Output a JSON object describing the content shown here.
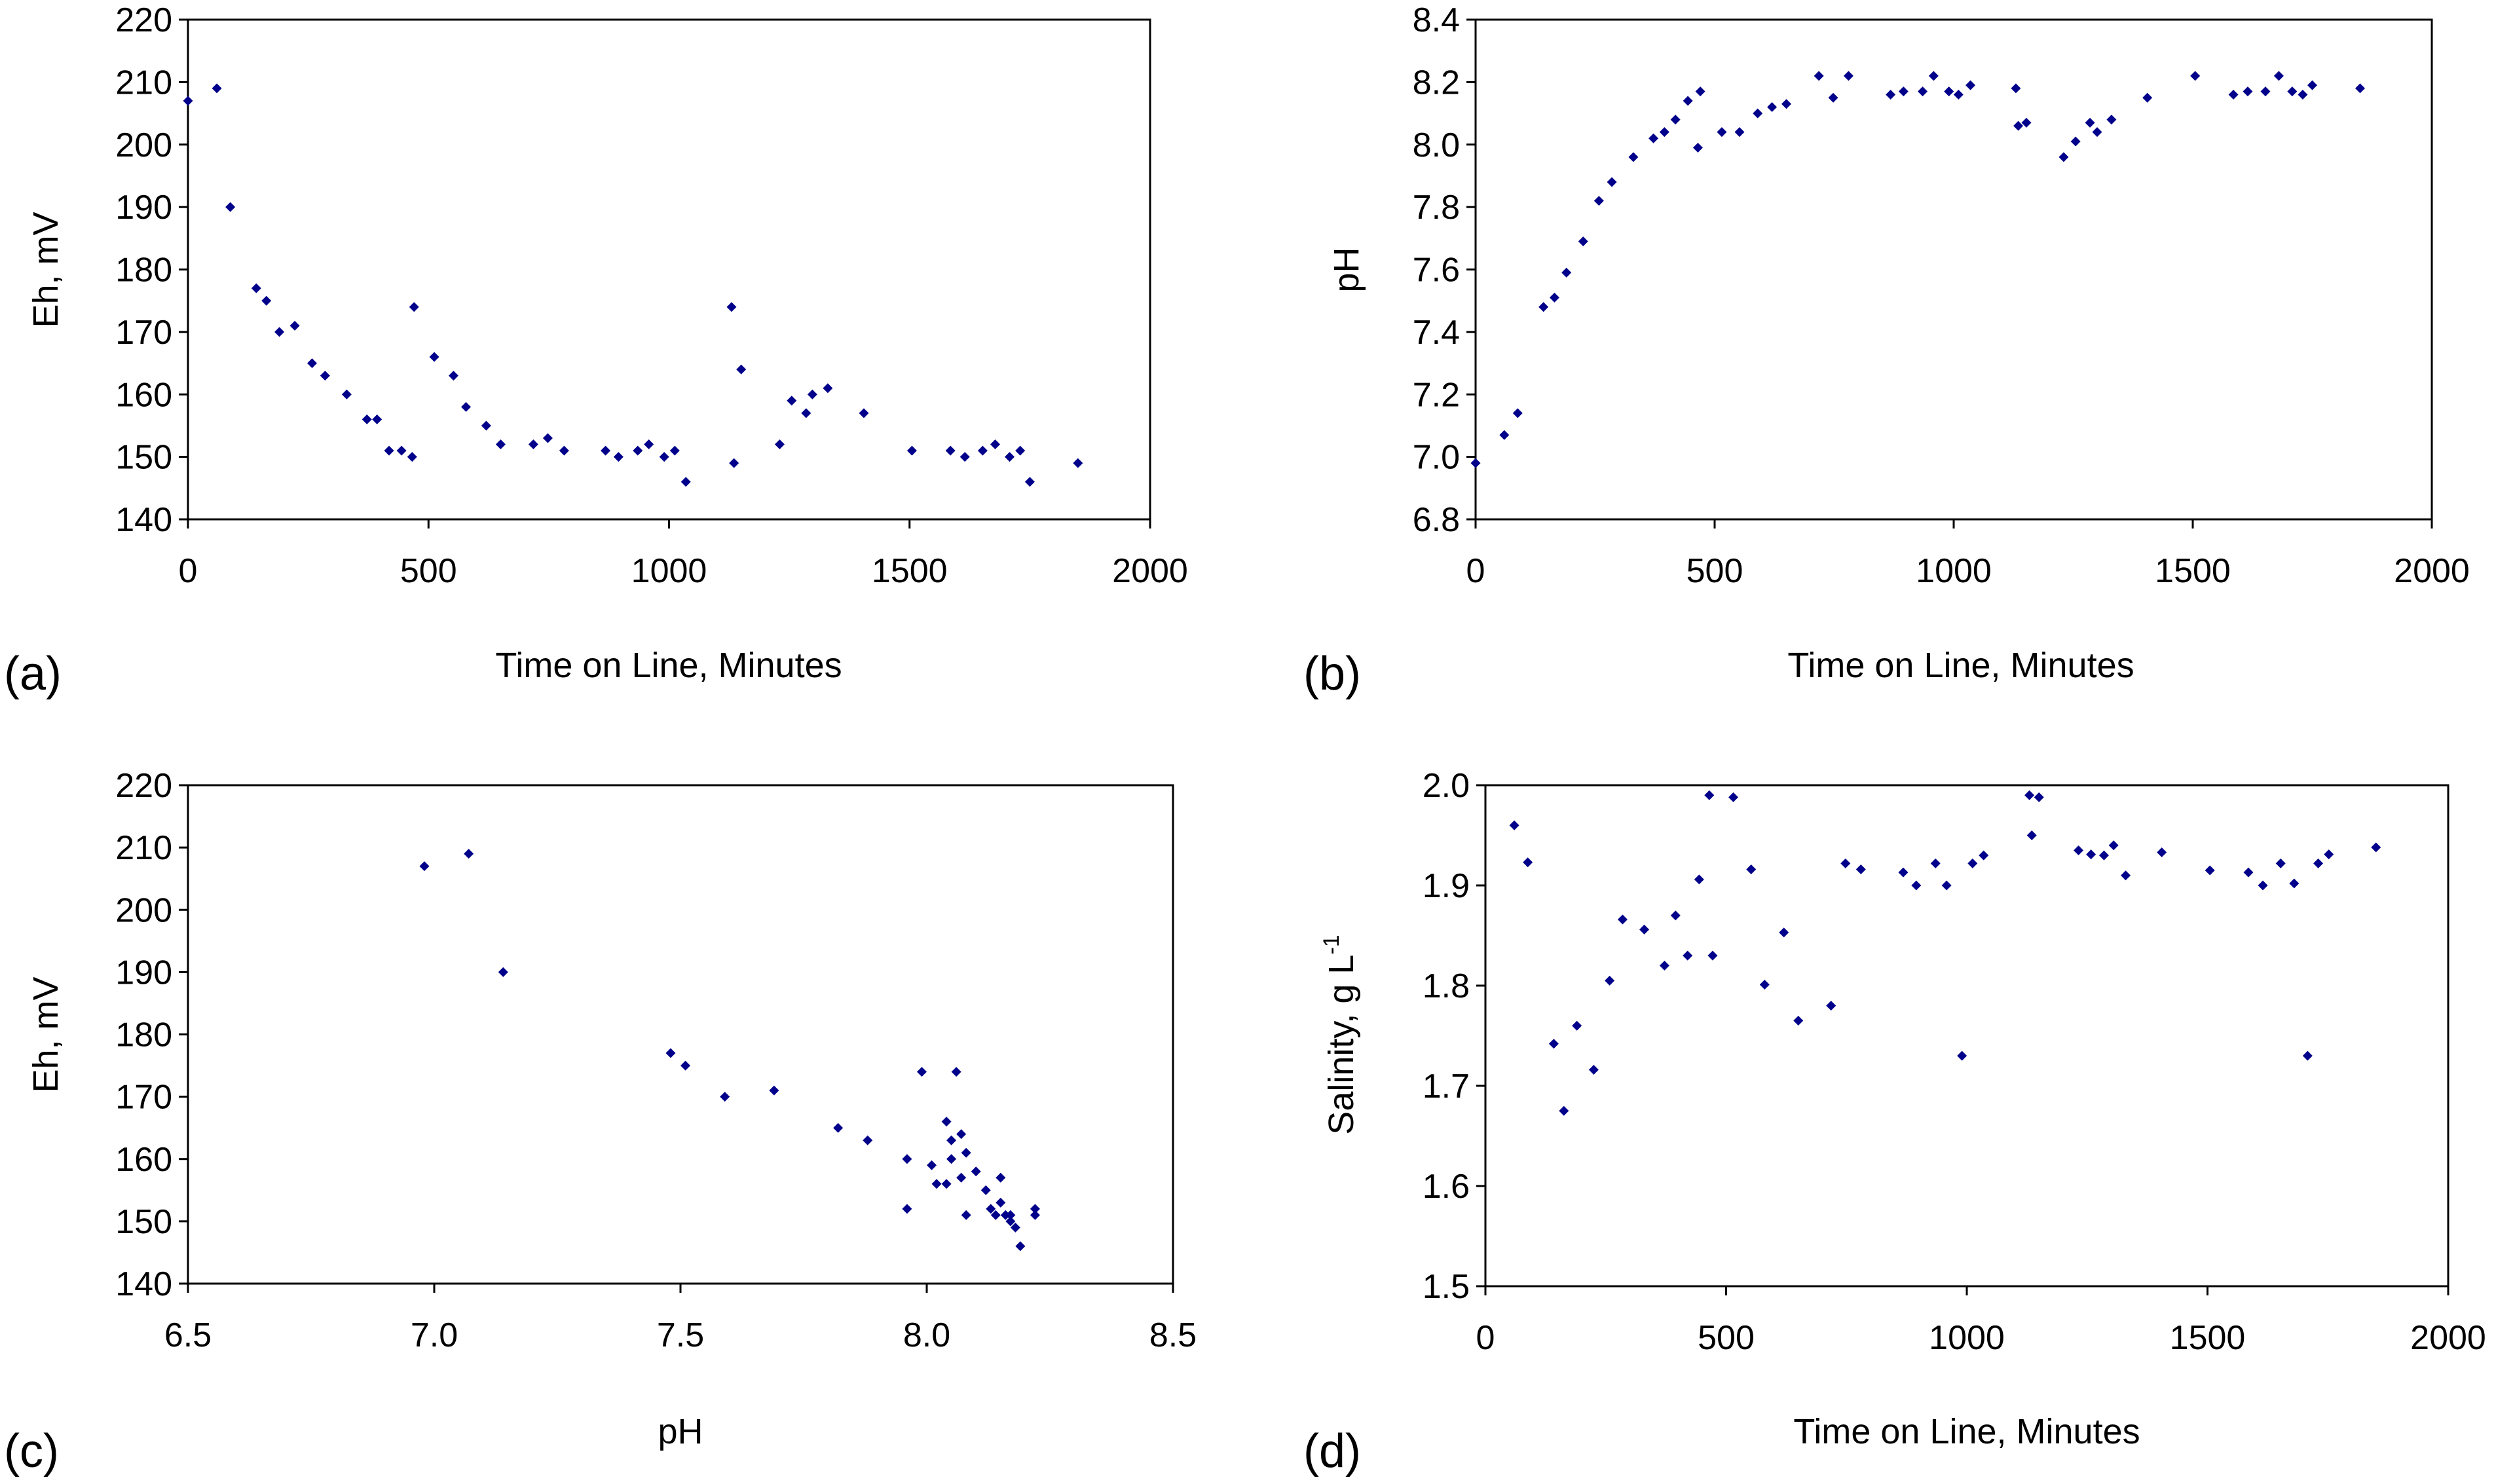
{
  "figure": {
    "marker_color": "#00008B",
    "axis_color": "#000000",
    "background": "#ffffff"
  },
  "chart_data": [
    {
      "type": "scatter",
      "panel_label": "(a)",
      "title": "",
      "xlabel": "Time on Line, Minutes",
      "ylabel": "Eh, mV",
      "xlim": [
        0,
        2000
      ],
      "ylim": [
        140,
        220
      ],
      "xticks": [
        0,
        500,
        1000,
        1500,
        2000
      ],
      "yticks": [
        140,
        150,
        160,
        170,
        180,
        190,
        200,
        210,
        220
      ],
      "xtick_labels": [
        "0",
        "500",
        "1000",
        "1500",
        "2000"
      ],
      "ytick_labels": [
        "140",
        "150",
        "160",
        "170",
        "180",
        "190",
        "200",
        "210",
        "220"
      ],
      "grid": false,
      "series": [
        {
          "name": "Eh",
          "points": [
            [
              0,
              207
            ],
            [
              60,
              209
            ],
            [
              88,
              190
            ],
            [
              142,
              177
            ],
            [
              163,
              175
            ],
            [
              190,
              170
            ],
            [
              222,
              171
            ],
            [
              258,
              165
            ],
            [
              285,
              163
            ],
            [
              330,
              160
            ],
            [
              372,
              156
            ],
            [
              393,
              156
            ],
            [
              418,
              151
            ],
            [
              444,
              151
            ],
            [
              466,
              150
            ],
            [
              470,
              174
            ],
            [
              512,
              166
            ],
            [
              552,
              163
            ],
            [
              578,
              158
            ],
            [
              620,
              155
            ],
            [
              650,
              152
            ],
            [
              718,
              152
            ],
            [
              748,
              153
            ],
            [
              782,
              151
            ],
            [
              868,
              151
            ],
            [
              895,
              150
            ],
            [
              935,
              151
            ],
            [
              958,
              152
            ],
            [
              990,
              150
            ],
            [
              1012,
              151
            ],
            [
              1035,
              146
            ],
            [
              1130,
              174
            ],
            [
              1135,
              149
            ],
            [
              1150,
              164
            ],
            [
              1230,
              152
            ],
            [
              1255,
              159
            ],
            [
              1285,
              157
            ],
            [
              1298,
              160
            ],
            [
              1330,
              161
            ],
            [
              1405,
              157
            ],
            [
              1505,
              151
            ],
            [
              1585,
              151
            ],
            [
              1615,
              150
            ],
            [
              1652,
              151
            ],
            [
              1678,
              152
            ],
            [
              1708,
              150
            ],
            [
              1730,
              151
            ],
            [
              1750,
              146
            ],
            [
              1850,
              149
            ]
          ]
        }
      ]
    },
    {
      "type": "scatter",
      "panel_label": "(b)",
      "title": "",
      "xlabel": "Time on Line, Minutes",
      "ylabel": "pH",
      "xlim": [
        0,
        2000
      ],
      "ylim": [
        6.8,
        8.4
      ],
      "xticks": [
        0,
        500,
        1000,
        1500,
        2000
      ],
      "yticks": [
        6.8,
        7.0,
        7.2,
        7.4,
        7.6,
        7.8,
        8.0,
        8.2,
        8.4
      ],
      "xtick_labels": [
        "0",
        "500",
        "1000",
        "1500",
        "2000"
      ],
      "ytick_labels": [
        "6.8",
        "7.0",
        "7.2",
        "7.4",
        "7.6",
        "7.8",
        "8.0",
        "8.2",
        "8.4"
      ],
      "grid": false,
      "series": [
        {
          "name": "pH",
          "points": [
            [
              0,
              6.98
            ],
            [
              60,
              7.07
            ],
            [
              88,
              7.14
            ],
            [
              142,
              7.48
            ],
            [
              165,
              7.51
            ],
            [
              190,
              7.59
            ],
            [
              225,
              7.69
            ],
            [
              258,
              7.82
            ],
            [
              285,
              7.88
            ],
            [
              330,
              7.96
            ],
            [
              372,
              8.02
            ],
            [
              395,
              8.04
            ],
            [
              418,
              8.08
            ],
            [
              444,
              8.14
            ],
            [
              465,
              7.99
            ],
            [
              470,
              8.17
            ],
            [
              515,
              8.04
            ],
            [
              552,
              8.04
            ],
            [
              590,
              8.1
            ],
            [
              620,
              8.12
            ],
            [
              650,
              8.13
            ],
            [
              718,
              8.22
            ],
            [
              748,
              8.15
            ],
            [
              780,
              8.22
            ],
            [
              868,
              8.16
            ],
            [
              895,
              8.17
            ],
            [
              935,
              8.17
            ],
            [
              958,
              8.22
            ],
            [
              990,
              8.17
            ],
            [
              1010,
              8.16
            ],
            [
              1035,
              8.19
            ],
            [
              1130,
              8.18
            ],
            [
              1135,
              8.06
            ],
            [
              1152,
              8.07
            ],
            [
              1230,
              7.96
            ],
            [
              1255,
              8.01
            ],
            [
              1285,
              8.07
            ],
            [
              1300,
              8.04
            ],
            [
              1330,
              8.08
            ],
            [
              1405,
              8.15
            ],
            [
              1505,
              8.22
            ],
            [
              1585,
              8.16
            ],
            [
              1615,
              8.17
            ],
            [
              1652,
              8.17
            ],
            [
              1680,
              8.22
            ],
            [
              1708,
              8.17
            ],
            [
              1730,
              8.16
            ],
            [
              1750,
              8.19
            ],
            [
              1850,
              8.18
            ]
          ]
        }
      ]
    },
    {
      "type": "scatter",
      "panel_label": "(c)",
      "title": "",
      "xlabel": "pH",
      "ylabel": "Eh, mV",
      "xlim": [
        6.5,
        8.5
      ],
      "ylim": [
        140,
        220
      ],
      "xticks": [
        6.5,
        7.0,
        7.5,
        8.0,
        8.5
      ],
      "yticks": [
        140,
        150,
        160,
        170,
        180,
        190,
        200,
        210,
        220
      ],
      "xtick_labels": [
        "6.5",
        "7.0",
        "7.5",
        "8.0",
        "8.5"
      ],
      "ytick_labels": [
        "140",
        "150",
        "160",
        "170",
        "180",
        "190",
        "200",
        "210",
        "220"
      ],
      "grid": false,
      "series": [
        {
          "name": "Eh vs pH",
          "points": [
            [
              6.98,
              207
            ],
            [
              7.07,
              209
            ],
            [
              7.14,
              190
            ],
            [
              7.48,
              177
            ],
            [
              7.51,
              175
            ],
            [
              7.59,
              170
            ],
            [
              7.69,
              171
            ],
            [
              7.82,
              165
            ],
            [
              7.88,
              163
            ],
            [
              7.96,
              160
            ],
            [
              7.96,
              152
            ],
            [
              7.99,
              174
            ],
            [
              8.01,
              159
            ],
            [
              8.02,
              156
            ],
            [
              8.04,
              166
            ],
            [
              8.04,
              156
            ],
            [
              8.05,
              160
            ],
            [
              8.05,
              163
            ],
            [
              8.06,
              174
            ],
            [
              8.07,
              157
            ],
            [
              8.07,
              164
            ],
            [
              8.08,
              161
            ],
            [
              8.08,
              151
            ],
            [
              8.1,
              158
            ],
            [
              8.12,
              155
            ],
            [
              8.13,
              152
            ],
            [
              8.14,
              151
            ],
            [
              8.15,
              157
            ],
            [
              8.15,
              153
            ],
            [
              8.16,
              151
            ],
            [
              8.17,
              151
            ],
            [
              8.17,
              150
            ],
            [
              8.18,
              149
            ],
            [
              8.19,
              146
            ],
            [
              8.22,
              152
            ],
            [
              8.22,
              151
            ]
          ]
        }
      ]
    },
    {
      "type": "scatter",
      "panel_label": "(d)",
      "title": "",
      "xlabel": "Time on Line, Minutes",
      "ylabel": "Salinity, g L",
      "ylabel_superscript": "-1",
      "xlim": [
        0,
        2000
      ],
      "ylim": [
        1.5,
        2.0
      ],
      "xticks": [
        0,
        500,
        1000,
        1500,
        2000
      ],
      "yticks": [
        1.5,
        1.6,
        1.7,
        1.8,
        1.9,
        2.0
      ],
      "xtick_labels": [
        "0",
        "500",
        "1000",
        "1500",
        "2000"
      ],
      "ytick_labels": [
        "1.5",
        "1.6",
        "1.7",
        "1.8",
        "1.9",
        "2.0"
      ],
      "grid": false,
      "series": [
        {
          "name": "Salinity",
          "points": [
            [
              60,
              1.96
            ],
            [
              88,
              1.923
            ],
            [
              142,
              1.742
            ],
            [
              163,
              1.675
            ],
            [
              190,
              1.76
            ],
            [
              225,
              1.716
            ],
            [
              258,
              1.805
            ],
            [
              285,
              1.866
            ],
            [
              330,
              1.856
            ],
            [
              372,
              1.82
            ],
            [
              395,
              1.87
            ],
            [
              420,
              1.83
            ],
            [
              444,
              1.906
            ],
            [
              465,
              1.99
            ],
            [
              472,
              1.83
            ],
            [
              515,
              1.988
            ],
            [
              552,
              1.916
            ],
            [
              580,
              1.801
            ],
            [
              620,
              1.853
            ],
            [
              650,
              1.765
            ],
            [
              718,
              1.78
            ],
            [
              748,
              1.922
            ],
            [
              780,
              1.916
            ],
            [
              868,
              1.913
            ],
            [
              895,
              1.9
            ],
            [
              935,
              1.922
            ],
            [
              958,
              1.9
            ],
            [
              990,
              1.73
            ],
            [
              1012,
              1.922
            ],
            [
              1035,
              1.93
            ],
            [
              1130,
              1.99
            ],
            [
              1135,
              1.95
            ],
            [
              1150,
              1.988
            ],
            [
              1232,
              1.935
            ],
            [
              1258,
              1.931
            ],
            [
              1285,
              1.93
            ],
            [
              1305,
              1.94
            ],
            [
              1330,
              1.91
            ],
            [
              1405,
              1.933
            ],
            [
              1505,
              1.915
            ],
            [
              1585,
              1.913
            ],
            [
              1615,
              1.9
            ],
            [
              1652,
              1.922
            ],
            [
              1680,
              1.902
            ],
            [
              1708,
              1.73
            ],
            [
              1730,
              1.922
            ],
            [
              1752,
              1.931
            ],
            [
              1850,
              1.938
            ]
          ]
        }
      ]
    }
  ]
}
